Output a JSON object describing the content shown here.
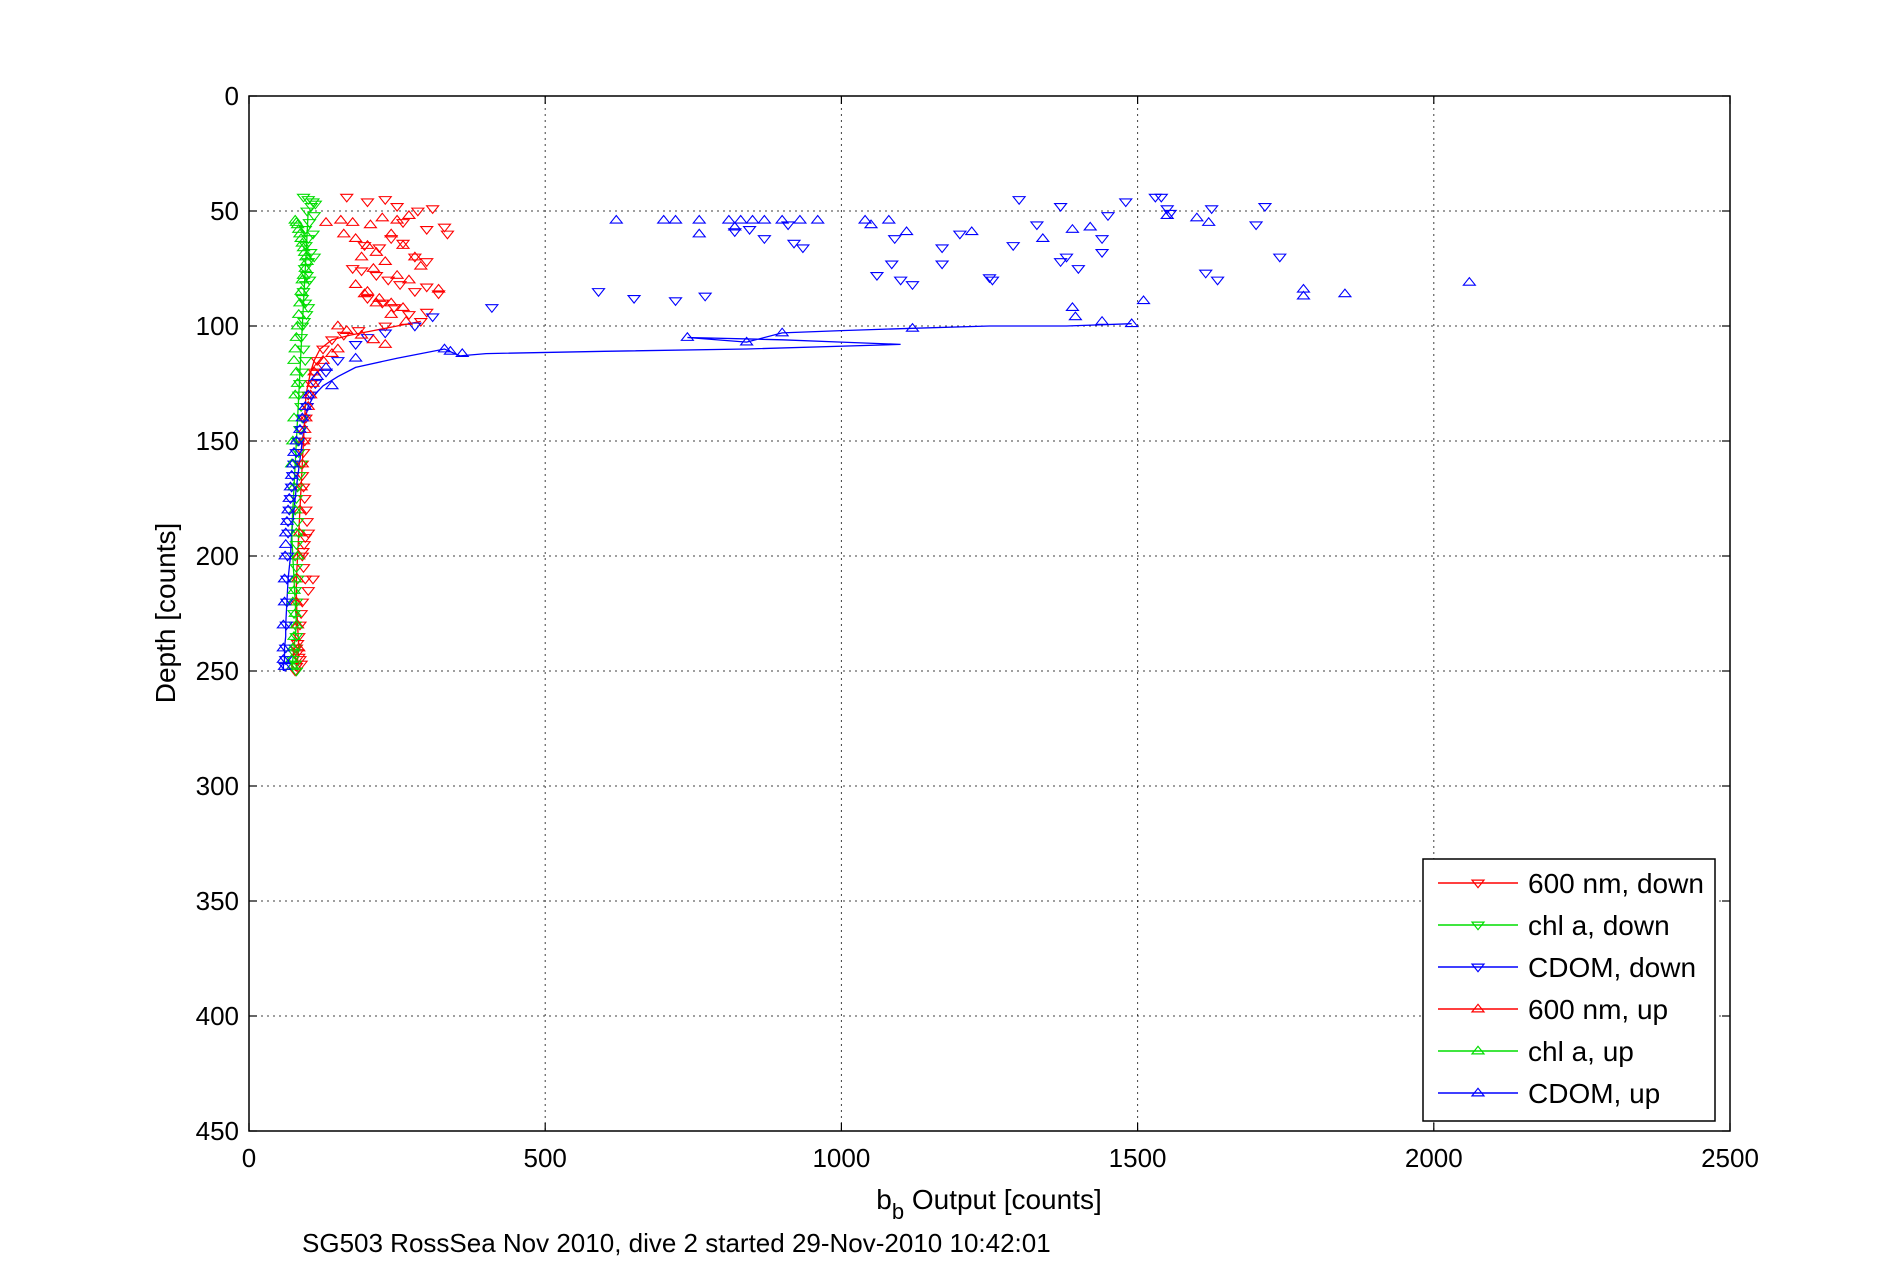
{
  "chart_data": {
    "type": "scatter",
    "xlabel": "b",
    "xlabel_sub": "b",
    "xlabel_rest": " Output [counts]",
    "ylabel": "Depth [counts]",
    "xlim": [
      0,
      2500
    ],
    "ylim": [
      0,
      450
    ],
    "y_reversed": true,
    "grid": true,
    "xticks": [
      "0",
      "500",
      "1000",
      "1500",
      "2000",
      "2500"
    ],
    "yticks": [
      "0",
      "50",
      "100",
      "150",
      "200",
      "250",
      "300",
      "350",
      "400",
      "450"
    ],
    "legend_position": "bottom-right",
    "series": [
      {
        "name": "600 nm, down",
        "color": "#ff0000",
        "marker": "triangle-down",
        "x": [
          165,
          200,
          230,
          250,
          285,
          310,
          335,
          260,
          300,
          330,
          195,
          220,
          240,
          260,
          280,
          300,
          175,
          190,
          215,
          235,
          255,
          280,
          300,
          320,
          200,
          225,
          245,
          270,
          300,
          290,
          230,
          185,
          160,
          140,
          125,
          115,
          110,
          105,
          100,
          98,
          96,
          94,
          92,
          90,
          90,
          92,
          94,
          96,
          98,
          100,
          95,
          93,
          91,
          90,
          92,
          95,
          100,
          108,
          90,
          88,
          86,
          84,
          82,
          80,
          82,
          84,
          86,
          88,
          80,
          78
        ],
        "y": [
          44,
          46,
          45,
          48,
          50,
          49,
          60,
          55,
          58,
          57,
          65,
          66,
          62,
          64,
          70,
          72,
          75,
          76,
          78,
          80,
          82,
          85,
          83,
          86,
          88,
          90,
          92,
          95,
          94,
          98,
          100,
          102,
          104,
          106,
          110,
          115,
          120,
          125,
          130,
          135,
          140,
          150,
          155,
          160,
          165,
          170,
          175,
          180,
          185,
          190,
          192,
          195,
          198,
          200,
          205,
          210,
          215,
          210,
          220,
          225,
          230,
          235,
          238,
          240,
          242,
          244,
          245,
          247,
          248,
          250
        ]
      },
      {
        "name": "chl a, down",
        "color": "#00dd00",
        "marker": "triangle-down",
        "x": [
          92,
          100,
          108,
          112,
          105,
          98,
          110,
          102,
          95,
          108,
          100,
          96,
          104,
          110,
          100,
          94,
          98,
          102,
          96,
          92,
          90,
          95,
          100,
          97,
          93,
          90,
          88,
          92,
          95,
          90,
          86,
          84,
          88,
          90,
          86,
          82,
          84,
          88,
          85,
          82,
          80,
          78,
          82,
          84,
          80,
          78,
          80,
          82,
          78,
          80,
          76,
          78,
          80,
          78,
          76,
          74,
          78,
          80
        ],
        "y": [
          44,
          45,
          46,
          47,
          48,
          50,
          52,
          55,
          58,
          60,
          62,
          65,
          68,
          70,
          72,
          75,
          78,
          80,
          82,
          85,
          88,
          90,
          92,
          95,
          98,
          100,
          105,
          110,
          115,
          120,
          125,
          130,
          135,
          140,
          145,
          150,
          155,
          160,
          165,
          170,
          175,
          180,
          185,
          190,
          195,
          200,
          205,
          210,
          215,
          220,
          225,
          230,
          235,
          240,
          242,
          245,
          247,
          250
        ]
      },
      {
        "name": "CDOM, down",
        "color": "#0000ff",
        "marker": "triangle-down",
        "x": [
          1300,
          1370,
          1480,
          1530,
          1540,
          1625,
          1715,
          1555,
          1700,
          1450,
          1330,
          1200,
          1440,
          1090,
          1170,
          1290,
          1440,
          1380,
          1370,
          1615,
          1250,
          1060,
          1550,
          1400,
          1100,
          1170,
          1255,
          1635,
          1740,
          1120,
          1085,
          935,
          920,
          910,
          870,
          845,
          820,
          770,
          720,
          650,
          590,
          410,
          310,
          280,
          230,
          200,
          180,
          150,
          130,
          112,
          105,
          98,
          92,
          88,
          84,
          80,
          76,
          74,
          72,
          70,
          68,
          66,
          66,
          65,
          64,
          64,
          63,
          62,
          62,
          61
        ],
        "y": [
          45,
          48,
          46,
          44,
          44,
          49,
          48,
          51,
          56,
          52,
          56,
          60,
          62,
          62,
          66,
          65,
          68,
          70,
          72,
          77,
          79,
          78,
          49,
          75,
          80,
          73,
          80,
          80,
          70,
          82,
          73,
          66,
          64,
          56,
          62,
          58,
          59,
          87,
          89,
          88,
          85,
          92,
          96,
          100,
          103,
          105,
          108,
          115,
          120,
          125,
          130,
          135,
          140,
          145,
          150,
          155,
          160,
          165,
          170,
          175,
          180,
          185,
          190,
          200,
          210,
          220,
          230,
          240,
          245,
          248
        ]
      },
      {
        "name": "600 nm, up",
        "color": "#ff0000",
        "marker": "triangle-up",
        "x": [
          130,
          155,
          175,
          205,
          225,
          250,
          270,
          160,
          180,
          200,
          215,
          240,
          260,
          280,
          190,
          210,
          230,
          250,
          270,
          290,
          320,
          200,
          220,
          240,
          260,
          180,
          195,
          215,
          240,
          265,
          150,
          165,
          190,
          210,
          230,
          150,
          140,
          125,
          115,
          110,
          108,
          104,
          100,
          96,
          94,
          92,
          90,
          88,
          86,
          85,
          84,
          82,
          80,
          82,
          84
        ],
        "y": [
          55,
          54,
          55,
          56,
          53,
          54,
          52,
          60,
          62,
          65,
          68,
          60,
          65,
          70,
          70,
          75,
          72,
          78,
          80,
          74,
          84,
          85,
          88,
          90,
          92,
          82,
          86,
          90,
          95,
          98,
          100,
          102,
          104,
          106,
          108,
          110,
          112,
          115,
          118,
          120,
          125,
          130,
          135,
          140,
          145,
          150,
          160,
          170,
          180,
          190,
          200,
          210,
          220,
          230,
          240
        ]
      },
      {
        "name": "chl a, up",
        "color": "#00dd00",
        "marker": "triangle-up",
        "x": [
          78,
          80,
          82,
          84,
          86,
          88,
          90,
          92,
          94,
          96,
          98,
          95,
          92,
          90,
          88,
          86,
          84,
          82,
          80,
          78,
          76,
          80,
          82,
          78,
          76,
          74,
          72,
          76,
          78,
          80,
          82,
          78,
          76,
          74,
          78,
          80,
          76,
          74,
          72,
          74
        ],
        "y": [
          54,
          55,
          56,
          58,
          60,
          62,
          64,
          66,
          68,
          70,
          72,
          75,
          78,
          80,
          85,
          90,
          95,
          100,
          105,
          110,
          115,
          120,
          125,
          130,
          140,
          150,
          160,
          170,
          180,
          190,
          200,
          210,
          215,
          220,
          225,
          230,
          235,
          240,
          245,
          248
        ]
      },
      {
        "name": "CDOM, up",
        "color": "#0000ff",
        "marker": "triangle-up",
        "x": [
          2060,
          1850,
          1780,
          1510,
          1390,
          1395,
          1440,
          1490,
          1120,
          900,
          740,
          840,
          360,
          340,
          330,
          180,
          130,
          115,
          140,
          100,
          95,
          90,
          86,
          80,
          76,
          74,
          72,
          70,
          68,
          66,
          64,
          62,
          62,
          61,
          60,
          60,
          58,
          58,
          58,
          60,
          620,
          700,
          720,
          760,
          810,
          830,
          850,
          870,
          900,
          930,
          960,
          1040,
          1050,
          1080,
          1110,
          1550,
          1600,
          1620,
          1780,
          1420,
          1390,
          1340,
          1220,
          820,
          760
        ],
        "y": [
          81,
          86,
          84,
          89,
          92,
          96,
          98,
          99,
          101,
          103,
          105,
          107,
          112,
          111,
          110,
          114,
          118,
          122,
          126,
          130,
          135,
          140,
          145,
          150,
          155,
          160,
          165,
          170,
          175,
          180,
          185,
          190,
          195,
          200,
          210,
          220,
          230,
          240,
          245,
          248,
          54,
          54,
          54,
          54,
          54,
          54,
          54,
          54,
          54,
          54,
          54,
          54,
          56,
          54,
          59,
          52,
          53,
          55,
          87,
          57,
          58,
          62,
          59,
          57,
          60
        ]
      }
    ],
    "lines": [
      {
        "color": "#0000ff",
        "x": [
          1490,
          1380,
          1250,
          1120,
          1000,
          900,
          840,
          740,
          900,
          1000,
          1100,
          840,
          600,
          400,
          356,
          330,
          250,
          180,
          150,
          125,
          110,
          100,
          95,
          90,
          85,
          80,
          76,
          72,
          70,
          66,
          64,
          62,
          62,
          60,
          60,
          58,
          58
        ],
        "y": [
          99,
          100,
          100,
          101,
          102,
          103,
          107,
          105,
          106,
          107,
          108,
          110,
          111,
          112,
          113,
          110,
          114,
          118,
          122,
          126,
          130,
          135,
          140,
          150,
          160,
          170,
          180,
          190,
          200,
          210,
          220,
          230,
          235,
          240,
          245,
          248,
          250
        ]
      },
      {
        "color": "#ff0000",
        "x": [
          290,
          250,
          210,
          170,
          140,
          120,
          110,
          104,
          100,
          96,
          94,
          92,
          90,
          88,
          86,
          84,
          82,
          80,
          80,
          82,
          84,
          82,
          80,
          78
        ],
        "y": [
          98,
          100,
          102,
          104,
          106,
          110,
          115,
          120,
          125,
          130,
          140,
          150,
          160,
          170,
          180,
          190,
          200,
          210,
          220,
          230,
          240,
          245,
          248,
          250
        ]
      },
      {
        "color": "#00dd00",
        "x": [
          100,
          98,
          96,
          94,
          92,
          90,
          88,
          86,
          84,
          82,
          80,
          78,
          76,
          74,
          72,
          74,
          76,
          78,
          80,
          78,
          76,
          74,
          72,
          74
        ],
        "y": [
          50,
          60,
          70,
          80,
          90,
          100,
          110,
          120,
          130,
          140,
          150,
          160,
          170,
          180,
          190,
          200,
          210,
          220,
          230,
          235,
          240,
          245,
          248,
          250
        ]
      }
    ]
  },
  "footer": "SG503 RossSea Nov 2010, dive 2 started 29-Nov-2010 10:42:01"
}
